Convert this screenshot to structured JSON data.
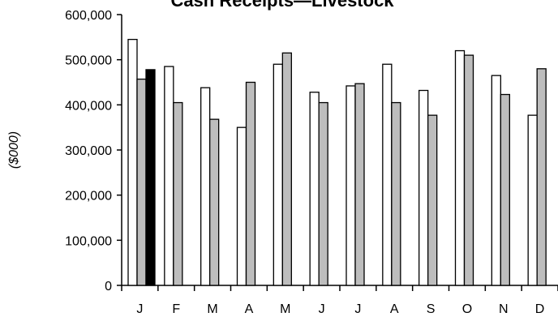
{
  "chart_data": {
    "type": "bar",
    "title": "Cash Receipts—Livestock",
    "ylabel": "($000)",
    "xlabel": "",
    "categories": [
      "J",
      "F",
      "M",
      "A",
      "M",
      "J",
      "J",
      "A",
      "S",
      "O",
      "N",
      "D"
    ],
    "ylim": [
      0,
      600000
    ],
    "yticks": [
      "0",
      "100,000",
      "200,000",
      "300,000",
      "400,000",
      "500,000",
      "600,000"
    ],
    "ytick_values": [
      0,
      100000,
      200000,
      300000,
      400000,
      500000,
      600000
    ],
    "grid": false,
    "legend": "none",
    "series": [
      {
        "values": [
          545000,
          485000,
          438000,
          350000,
          490000,
          428000,
          442000,
          490000,
          432000,
          520000,
          465000,
          377000
        ],
        "color": "#ffffff"
      },
      {
        "values": [
          457000,
          405000,
          368000,
          450000,
          515000,
          405000,
          447000,
          405000,
          377000,
          510000,
          423000,
          480000
        ],
        "color": "#bdbdbd"
      },
      {
        "values": [
          478000,
          null,
          null,
          null,
          null,
          null,
          null,
          null,
          null,
          null,
          null,
          null
        ],
        "color": "#000000"
      }
    ]
  }
}
